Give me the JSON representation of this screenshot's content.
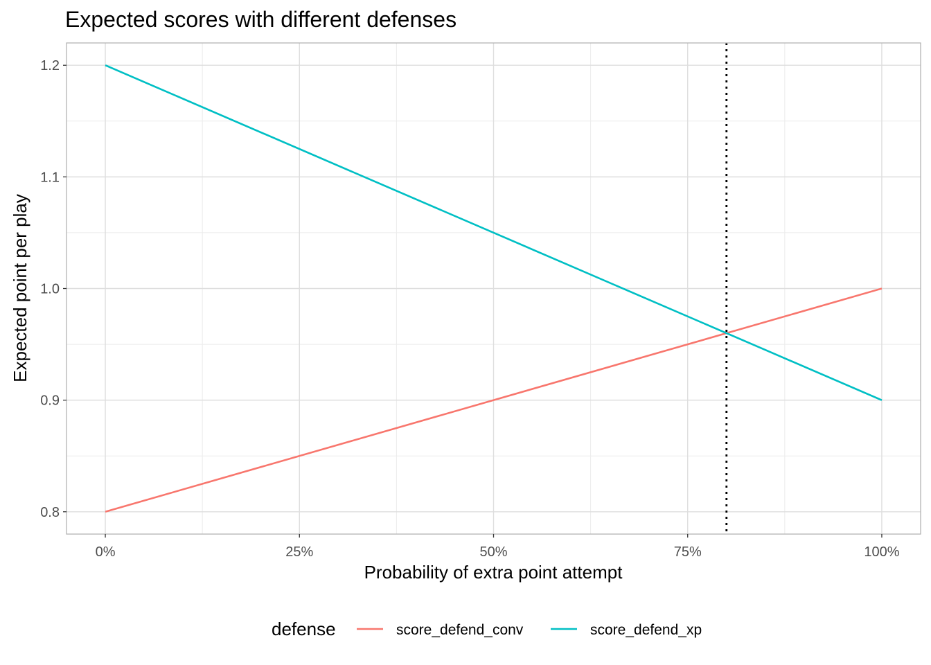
{
  "chart_data": {
    "type": "line",
    "title": "Expected scores with different defenses",
    "xlabel": "Probability of extra point attempt",
    "ylabel": "Expected point per play",
    "xlim": [
      -0.05,
      1.05
    ],
    "ylim": [
      0.78,
      1.22
    ],
    "x_ticks": [
      0,
      0.25,
      0.5,
      0.75,
      1.0
    ],
    "x_tick_labels": [
      "0%",
      "25%",
      "50%",
      "75%",
      "100%"
    ],
    "x_minor_ticks": [
      0.125,
      0.375,
      0.625,
      0.875
    ],
    "y_ticks": [
      0.8,
      0.9,
      1.0,
      1.1,
      1.2
    ],
    "y_tick_labels": [
      "0.8",
      "0.9",
      "1.0",
      "1.1",
      "1.2"
    ],
    "y_minor_ticks": [
      0.85,
      0.95,
      1.05,
      1.15
    ],
    "grid": true,
    "legend": {
      "title": "defense",
      "position": "bottom"
    },
    "series": [
      {
        "name": "score_defend_conv",
        "color": "#F8766D",
        "x": [
          0,
          1
        ],
        "y": [
          0.8,
          1.0
        ]
      },
      {
        "name": "score_defend_xp",
        "color": "#00BFC4",
        "x": [
          0,
          1
        ],
        "y": [
          1.2,
          0.9
        ]
      }
    ],
    "vline": {
      "x": 0.8,
      "style": "dotted",
      "color": "#000000"
    }
  }
}
